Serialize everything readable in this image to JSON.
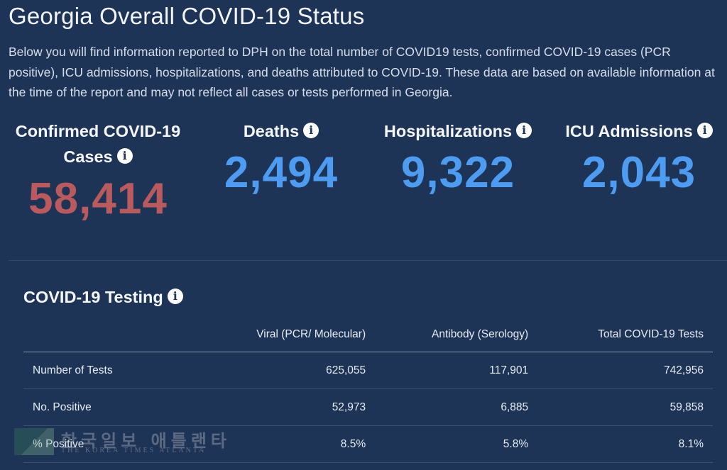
{
  "header": {
    "title": "Georgia Overall COVID-19 Status",
    "intro": "Below you will find information reported to DPH on the total number of COVID19 tests, confirmed COVID-19 cases (PCR positive), ICU admissions, hospitalizations, and deaths attributed to COVID-19. These data are based on available information at the time of the report and may not reflect all cases or tests performed in Georgia."
  },
  "stats": {
    "cases": {
      "label_line1": "Confirmed COVID-19",
      "label_line2": "Cases",
      "value": "58,414"
    },
    "deaths": {
      "label": "Deaths",
      "value": "2,494"
    },
    "hospitalizations": {
      "label": "Hospitalizations",
      "value": "9,322"
    },
    "icu": {
      "label": "ICU Admissions",
      "value": "2,043"
    }
  },
  "info_icon_glyph": "i",
  "testing": {
    "title": "COVID-19 Testing",
    "columns": [
      "Viral (PCR/ Molecular)",
      "Antibody (Serology)",
      "Total COVID-19 Tests"
    ],
    "rows": [
      {
        "label": "Number of Tests",
        "values": [
          "625,055",
          "117,901",
          "742,956"
        ]
      },
      {
        "label": "No. Positive",
        "values": [
          "52,973",
          "6,885",
          "59,858"
        ]
      },
      {
        "label": "% Positive",
        "values": [
          "8.5%",
          "5.8%",
          "8.1%"
        ]
      }
    ]
  },
  "watermark": {
    "korean": "한국일보 애틀랜타",
    "english": "THE KOREA TIMES ATLANTA"
  },
  "colors": {
    "background": "#1e3457",
    "cases_value": "#b85a5e",
    "stat_value": "#4d9cf2"
  },
  "icons": {
    "info": "info-icon"
  }
}
